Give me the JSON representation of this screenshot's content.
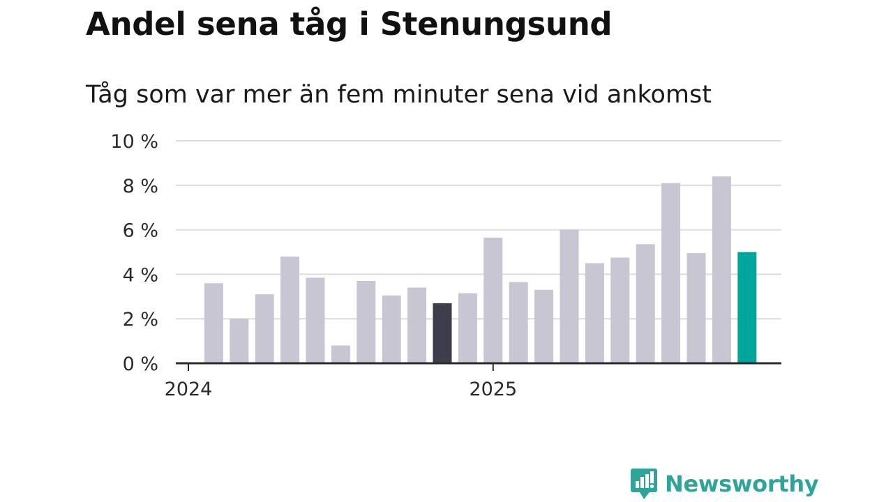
{
  "title": "Andel sena tåg i Stenungsund",
  "subtitle": "Tåg som var mer än fem minuter sena vid ankomst",
  "brand": {
    "name": "Newsworthy",
    "icon": "newsworthy-logo-icon",
    "color": "#2fa59a"
  },
  "chart_data": {
    "type": "bar",
    "y_ticks": [
      "0 %",
      "2 %",
      "4 %",
      "6 %",
      "8 %",
      "10 %"
    ],
    "x_tick_labels": [
      {
        "label": "2024",
        "at_index": 0
      },
      {
        "label": "2025",
        "at_index": 12
      }
    ],
    "ylim": [
      0,
      10
    ],
    "grid": true,
    "colors": {
      "default": "#c8c6d2",
      "highlight_dark": "#3e3d4b",
      "latest": "#00a69b"
    },
    "bars": [
      {
        "month": "2024-01",
        "value": null
      },
      {
        "month": "2024-02",
        "value": 3.6
      },
      {
        "month": "2024-03",
        "value": 2.0
      },
      {
        "month": "2024-04",
        "value": 3.1
      },
      {
        "month": "2024-05",
        "value": 4.8
      },
      {
        "month": "2024-06",
        "value": 3.85
      },
      {
        "month": "2024-07",
        "value": 0.8
      },
      {
        "month": "2024-08",
        "value": 3.7
      },
      {
        "month": "2024-09",
        "value": 3.05
      },
      {
        "month": "2024-10",
        "value": 3.4
      },
      {
        "month": "2024-11",
        "value": 2.7,
        "style": "highlight_dark"
      },
      {
        "month": "2024-12",
        "value": 3.15
      },
      {
        "month": "2025-01",
        "value": 5.65
      },
      {
        "month": "2025-02",
        "value": 3.65
      },
      {
        "month": "2025-03",
        "value": 3.3
      },
      {
        "month": "2025-04",
        "value": 6.0
      },
      {
        "month": "2025-05",
        "value": 4.5
      },
      {
        "month": "2025-06",
        "value": 4.75
      },
      {
        "month": "2025-07",
        "value": 5.35
      },
      {
        "month": "2025-08",
        "value": 8.1
      },
      {
        "month": "2025-09",
        "value": 4.95
      },
      {
        "month": "2025-10",
        "value": 8.4
      },
      {
        "month": "2025-11",
        "value": 5.0,
        "style": "latest"
      }
    ]
  }
}
